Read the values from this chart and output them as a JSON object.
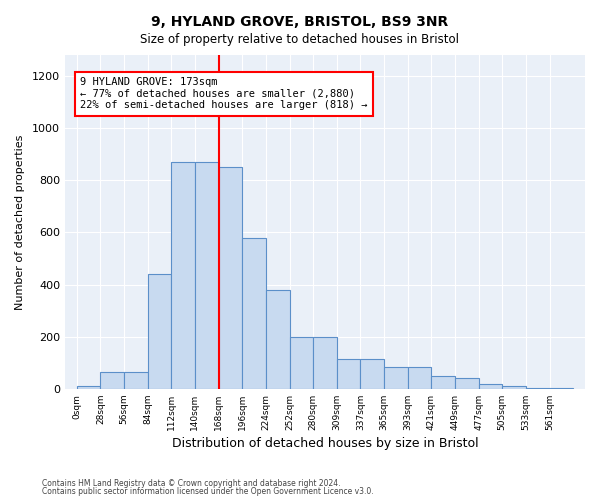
{
  "title1": "9, HYLAND GROVE, BRISTOL, BS9 3NR",
  "title2": "Size of property relative to detached houses in Bristol",
  "xlabel": "Distribution of detached houses by size in Bristol",
  "ylabel": "Number of detached properties",
  "bin_labels": [
    "0sqm",
    "28sqm",
    "56sqm",
    "84sqm",
    "112sqm",
    "140sqm",
    "168sqm",
    "196sqm",
    "224sqm",
    "252sqm",
    "280sqm",
    "309sqm",
    "337sqm",
    "365sqm",
    "393sqm",
    "421sqm",
    "449sqm",
    "477sqm",
    "505sqm",
    "533sqm",
    "561sqm"
  ],
  "bar_heights": [
    10,
    65,
    65,
    440,
    870,
    870,
    850,
    580,
    380,
    200,
    200,
    115,
    115,
    85,
    85,
    50,
    40,
    20,
    12,
    5,
    5
  ],
  "bar_color": "#c8daf0",
  "bar_edge_color": "#5b8fc9",
  "marker_color": "red",
  "annotation_text1": "9 HYLAND GROVE: 173sqm",
  "annotation_text2": "← 77% of detached houses are smaller (2,880)",
  "annotation_text3": "22% of semi-detached houses are larger (818) →",
  "ylim": [
    0,
    1280
  ],
  "footnote1": "Contains HM Land Registry data © Crown copyright and database right 2024.",
  "footnote2": "Contains public sector information licensed under the Open Government Licence v3.0.",
  "bg_color": "#eaf0f8",
  "grid_color": "white"
}
